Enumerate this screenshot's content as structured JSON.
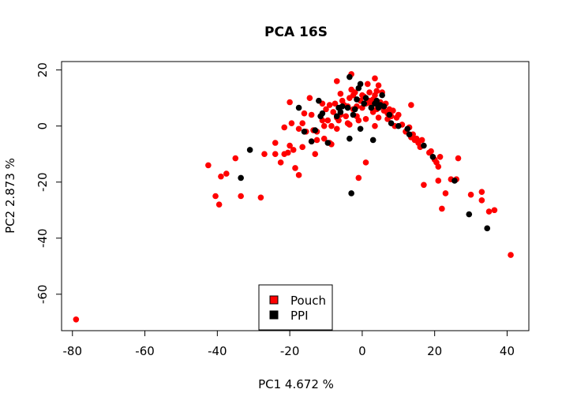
{
  "chart_data": {
    "type": "scatter",
    "title": "PCA 16S",
    "xlabel": "PC1 4.672 %",
    "ylabel": "PC2 2.873 %",
    "xlim": [
      -83,
      46
    ],
    "ylim": [
      -73,
      23
    ],
    "xticks": [
      -80,
      -60,
      -40,
      -20,
      0,
      20,
      40
    ],
    "yticks": [
      -60,
      -40,
      -20,
      0,
      20
    ],
    "grid": false,
    "legend_position": "bottom-center",
    "series": [
      {
        "name": "Pouch",
        "color": "#ff0000",
        "points": [
          [
            -79,
            -69
          ],
          [
            -42.5,
            -14
          ],
          [
            -40.5,
            -25
          ],
          [
            -39.5,
            -28
          ],
          [
            -39,
            -18
          ],
          [
            -37.5,
            -17
          ],
          [
            -35,
            -11.5
          ],
          [
            -33.5,
            -25
          ],
          [
            -28,
            -25.5
          ],
          [
            -27,
            -10
          ],
          [
            -24,
            -6
          ],
          [
            -24,
            -10
          ],
          [
            -22.5,
            -13
          ],
          [
            -21.5,
            -10
          ],
          [
            -21.5,
            -0.5
          ],
          [
            -20,
            -7
          ],
          [
            -20.5,
            -9.5
          ],
          [
            -20,
            8.5
          ],
          [
            -19.5,
            1
          ],
          [
            -19,
            -8.5
          ],
          [
            -18.5,
            -15
          ],
          [
            -17.5,
            -17.5
          ],
          [
            -17.5,
            -1
          ],
          [
            -16.5,
            -7.5
          ],
          [
            -16.5,
            1
          ],
          [
            -16,
            4.5
          ],
          [
            -15.5,
            -2
          ],
          [
            -14.5,
            10
          ],
          [
            -14,
            4
          ],
          [
            -14,
            -5.5
          ],
          [
            -13.5,
            -1.5
          ],
          [
            -13,
            -10
          ],
          [
            -12.5,
            -5
          ],
          [
            -12.5,
            -2
          ],
          [
            -11,
            2
          ],
          [
            -11,
            8
          ],
          [
            -10.5,
            0
          ],
          [
            -10.5,
            -4.5
          ],
          [
            -10,
            6
          ],
          [
            -9.5,
            2
          ],
          [
            -9,
            7.5
          ],
          [
            -9,
            -6
          ],
          [
            -8.5,
            0
          ],
          [
            -8.5,
            -6.5
          ],
          [
            -8,
            5
          ],
          [
            -7.5,
            8
          ],
          [
            -7,
            3
          ],
          [
            -7,
            -1
          ],
          [
            -7,
            16
          ],
          [
            -6.5,
            2
          ],
          [
            -6,
            11.5
          ],
          [
            -6,
            4
          ],
          [
            -5.5,
            9
          ],
          [
            -5,
            7.5
          ],
          [
            -4.5,
            3.5
          ],
          [
            -4,
            7
          ],
          [
            -4,
            1
          ],
          [
            -3.5,
            0.5
          ],
          [
            -3.5,
            10
          ],
          [
            -3,
            18.5
          ],
          [
            -3,
            13
          ],
          [
            -2.5,
            11
          ],
          [
            -2.5,
            6
          ],
          [
            -2,
            12
          ],
          [
            -1.5,
            3.5
          ],
          [
            -1.5,
            7
          ],
          [
            -1,
            2
          ],
          [
            -1,
            -18.5
          ],
          [
            -0.5,
            9
          ],
          [
            0,
            11
          ],
          [
            0,
            6.5
          ],
          [
            0.5,
            10.5
          ],
          [
            1,
            2.5
          ],
          [
            1,
            8
          ],
          [
            1,
            -13
          ],
          [
            1.5,
            15
          ],
          [
            2,
            9
          ],
          [
            2,
            12
          ],
          [
            2.5,
            7.5
          ],
          [
            3,
            9.5
          ],
          [
            3,
            5
          ],
          [
            3.5,
            17
          ],
          [
            3.5,
            11
          ],
          [
            3.5,
            0
          ],
          [
            4,
            12.5
          ],
          [
            4,
            6
          ],
          [
            4.5,
            14.5
          ],
          [
            4.5,
            3
          ],
          [
            5,
            8.5
          ],
          [
            5,
            7
          ],
          [
            5.5,
            12
          ],
          [
            6,
            5.5
          ],
          [
            6.5,
            8
          ],
          [
            7,
            4.5
          ],
          [
            7,
            2.5
          ],
          [
            7.5,
            6
          ],
          [
            8,
            3.5
          ],
          [
            8.5,
            5.5
          ],
          [
            9,
            0
          ],
          [
            9.5,
            3
          ],
          [
            10,
            4
          ],
          [
            11,
            0.5
          ],
          [
            12,
            -2
          ],
          [
            13,
            -0.5
          ],
          [
            13.5,
            7.5
          ],
          [
            13.5,
            -4
          ],
          [
            14,
            -3
          ],
          [
            14.5,
            -5
          ],
          [
            15,
            -4.5
          ],
          [
            15.5,
            -6
          ],
          [
            16,
            -7.5
          ],
          [
            16.5,
            -5
          ],
          [
            17,
            -21
          ],
          [
            18.5,
            -9.5
          ],
          [
            19,
            -9
          ],
          [
            20,
            -12
          ],
          [
            20.5,
            -13
          ],
          [
            21,
            -14.5
          ],
          [
            21,
            -19.5
          ],
          [
            21.5,
            -11
          ],
          [
            22,
            -29.5
          ],
          [
            23,
            -24
          ],
          [
            24.5,
            -19
          ],
          [
            26,
            -19
          ],
          [
            26.5,
            -11.5
          ],
          [
            30,
            -24.5
          ],
          [
            33,
            -26.5
          ],
          [
            33,
            -23.5
          ],
          [
            35,
            -30.5
          ],
          [
            36.5,
            -30
          ],
          [
            41,
            -46
          ]
        ]
      },
      {
        "name": "PPI",
        "color": "#000000",
        "points": [
          [
            -33.5,
            -18.5
          ],
          [
            -31,
            -8.5
          ],
          [
            -17.5,
            6.5
          ],
          [
            -16,
            -2
          ],
          [
            -14,
            -5.5
          ],
          [
            -13,
            -1.5
          ],
          [
            -12,
            9
          ],
          [
            -11.5,
            3.5
          ],
          [
            -11,
            4.5
          ],
          [
            -9.5,
            -6
          ],
          [
            -7,
            3.5
          ],
          [
            -6.5,
            6.5
          ],
          [
            -6,
            5
          ],
          [
            -5.5,
            7
          ],
          [
            -4,
            6.5
          ],
          [
            -3.5,
            -4.5
          ],
          [
            -3.5,
            17.5
          ],
          [
            -3,
            -24
          ],
          [
            -2.5,
            4
          ],
          [
            -2,
            6
          ],
          [
            -1.5,
            9.5
          ],
          [
            -1,
            13.5
          ],
          [
            -0.5,
            15
          ],
          [
            -0.5,
            -1
          ],
          [
            0.5,
            8
          ],
          [
            1,
            10
          ],
          [
            2.5,
            6.5
          ],
          [
            3,
            -5
          ],
          [
            3.5,
            8
          ],
          [
            4,
            9
          ],
          [
            4.5,
            6.5
          ],
          [
            5,
            7.5
          ],
          [
            5.5,
            11
          ],
          [
            6,
            7
          ],
          [
            7.5,
            4
          ],
          [
            8,
            1
          ],
          [
            10,
            0
          ],
          [
            12.5,
            -1
          ],
          [
            13,
            -3
          ],
          [
            17,
            -7
          ],
          [
            19.5,
            -11
          ],
          [
            25.5,
            -19.5
          ],
          [
            29.5,
            -31.5
          ],
          [
            34.5,
            -36.5
          ]
        ]
      }
    ]
  }
}
